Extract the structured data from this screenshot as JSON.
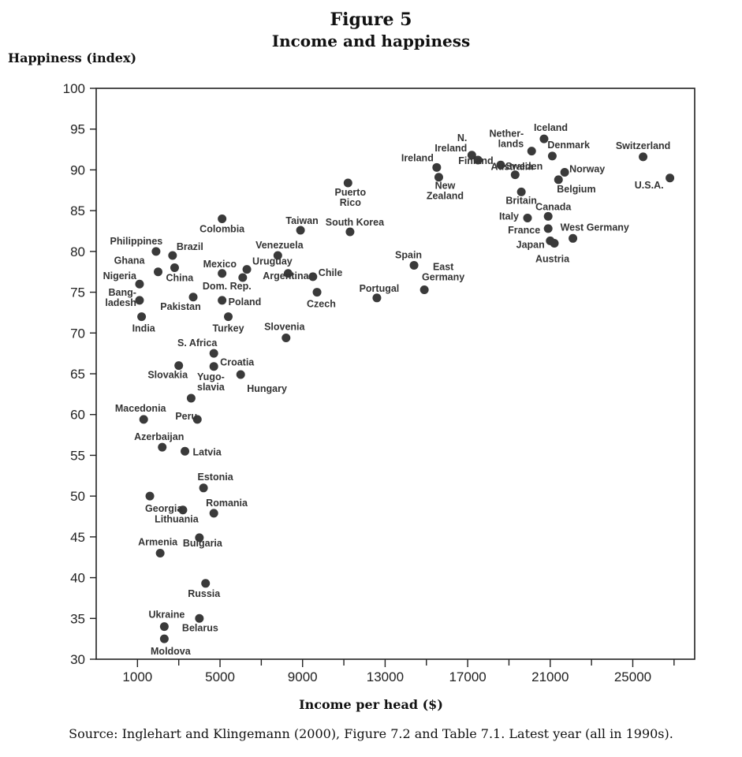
{
  "chart_data": {
    "type": "scatter",
    "title": "Figure 5",
    "subtitle": "Income and happiness",
    "ylabel": "Happiness (index)",
    "xlabel": "Income per head ($)",
    "source": "Source: Inglehart and Klingemann (2000), Figure 7.2 and Table 7.1. Latest year (all in 1990s).",
    "xlim": [
      -1000,
      28000
    ],
    "ylim": [
      30,
      100
    ],
    "xticks": [
      1000,
      5000,
      9000,
      13000,
      17000,
      21000,
      25000
    ],
    "yticks": [
      30,
      35,
      40,
      45,
      50,
      55,
      60,
      65,
      70,
      75,
      80,
      85,
      90,
      95,
      100
    ],
    "grid": false,
    "points": [
      {
        "label": "Iceland",
        "x": 20700,
        "y": 93.8
      },
      {
        "label": "N. Ireland",
        "x": 17200,
        "y": 91.8
      },
      {
        "label": "Nether- lands",
        "x": 20100,
        "y": 92.3
      },
      {
        "label": "Denmark",
        "x": 21100,
        "y": 91.7
      },
      {
        "label": "Switzerland",
        "x": 25500,
        "y": 91.6
      },
      {
        "label": "Ireland",
        "x": 15500,
        "y": 90.3
      },
      {
        "label": "Finland",
        "x": 17500,
        "y": 91.2
      },
      {
        "label": "Sweden",
        "x": 18600,
        "y": 90.6
      },
      {
        "label": "Norway",
        "x": 21700,
        "y": 89.7
      },
      {
        "label": "U.S.A.",
        "x": 26800,
        "y": 89.0
      },
      {
        "label": "New Zealand",
        "x": 15600,
        "y": 89.1
      },
      {
        "label": "Australia",
        "x": 19300,
        "y": 89.4
      },
      {
        "label": "Belgium",
        "x": 21400,
        "y": 88.8
      },
      {
        "label": "Puerto Rico",
        "x": 11200,
        "y": 88.4
      },
      {
        "label": "Britain",
        "x": 19600,
        "y": 87.3
      },
      {
        "label": "Canada",
        "x": 20900,
        "y": 84.3
      },
      {
        "label": "Italy",
        "x": 19900,
        "y": 84.1
      },
      {
        "label": "Colombia",
        "x": 5100,
        "y": 84.0
      },
      {
        "label": "Taiwan",
        "x": 8900,
        "y": 82.6
      },
      {
        "label": "South Korea",
        "x": 11300,
        "y": 82.4
      },
      {
        "label": "France",
        "x": 20900,
        "y": 82.8
      },
      {
        "label": "West Germany",
        "x": 22100,
        "y": 81.6
      },
      {
        "label": "Japan",
        "x": 21000,
        "y": 81.3
      },
      {
        "label": "Austria",
        "x": 21200,
        "y": 81.0
      },
      {
        "label": "Philippines",
        "x": 1900,
        "y": 80.0
      },
      {
        "label": "Brazil",
        "x": 2700,
        "y": 79.5
      },
      {
        "label": "Venezuela",
        "x": 7800,
        "y": 79.5
      },
      {
        "label": "Spain",
        "x": 14400,
        "y": 78.3
      },
      {
        "label": "Ghana",
        "x": 2000,
        "y": 77.5
      },
      {
        "label": "China",
        "x": 2800,
        "y": 78.0
      },
      {
        "label": "Mexico",
        "x": 5100,
        "y": 77.3
      },
      {
        "label": "Uruguay",
        "x": 6300,
        "y": 77.8
      },
      {
        "label": "Dom. Rep.",
        "x": 6100,
        "y": 76.8
      },
      {
        "label": "Argentina",
        "x": 8300,
        "y": 77.3
      },
      {
        "label": "Chile",
        "x": 9500,
        "y": 76.9
      },
      {
        "label": "East Germany",
        "x": 14900,
        "y": 75.3
      },
      {
        "label": "Nigeria",
        "x": 1100,
        "y": 76.0
      },
      {
        "label": "Czech",
        "x": 9700,
        "y": 75.0
      },
      {
        "label": "Portugal",
        "x": 12600,
        "y": 74.3
      },
      {
        "label": "Bang- ladesh",
        "x": 1100,
        "y": 74.0
      },
      {
        "label": "Pakistan",
        "x": 3700,
        "y": 74.4
      },
      {
        "label": "Poland",
        "x": 5100,
        "y": 74.0
      },
      {
        "label": "India",
        "x": 1200,
        "y": 72.0
      },
      {
        "label": "Turkey",
        "x": 5400,
        "y": 72.0
      },
      {
        "label": "Slovenia",
        "x": 8200,
        "y": 69.4
      },
      {
        "label": "S. Africa",
        "x": 4700,
        "y": 67.5
      },
      {
        "label": "Croatia",
        "x": 4700,
        "y": 65.9
      },
      {
        "label": "Slovakia",
        "x": 3000,
        "y": 66.0
      },
      {
        "label": "Hungary",
        "x": 6000,
        "y": 64.9
      },
      {
        "label": "Yugo- slavia",
        "x": 3600,
        "y": 62.0
      },
      {
        "label": "Macedonia",
        "x": 1300,
        "y": 59.4
      },
      {
        "label": "Peru",
        "x": 3900,
        "y": 59.4
      },
      {
        "label": "Azerbaijan",
        "x": 2200,
        "y": 56.0
      },
      {
        "label": "Latvia",
        "x": 3300,
        "y": 55.5
      },
      {
        "label": "Estonia",
        "x": 4200,
        "y": 51.0
      },
      {
        "label": "Georgia",
        "x": 1600,
        "y": 50.0
      },
      {
        "label": "Lithuania",
        "x": 3200,
        "y": 48.3
      },
      {
        "label": "Romania",
        "x": 4700,
        "y": 47.9
      },
      {
        "label": "Armenia",
        "x": 2100,
        "y": 43.0
      },
      {
        "label": "Bulgaria",
        "x": 4000,
        "y": 44.9
      },
      {
        "label": "Russia",
        "x": 4300,
        "y": 39.3
      },
      {
        "label": "Ukraine",
        "x": 2300,
        "y": 34.0
      },
      {
        "label": "Belarus",
        "x": 4000,
        "y": 35.0
      },
      {
        "label": "Moldova",
        "x": 2300,
        "y": 32.5
      }
    ]
  }
}
